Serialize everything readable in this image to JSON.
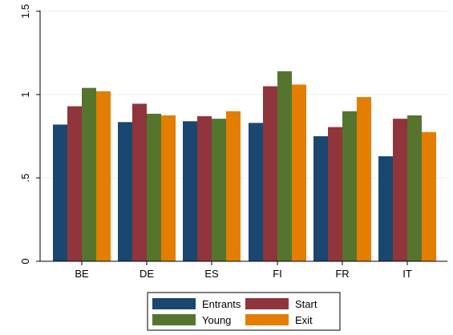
{
  "chart_data": {
    "type": "bar",
    "title": "",
    "xlabel": "",
    "ylabel": "",
    "categories": [
      "BE",
      "DE",
      "ES",
      "FI",
      "FR",
      "IT"
    ],
    "series": [
      {
        "name": "Entrants",
        "color": "#1a476f",
        "values": [
          0.82,
          0.835,
          0.84,
          0.83,
          0.75,
          0.63
        ]
      },
      {
        "name": "Start",
        "color": "#90353b",
        "values": [
          0.93,
          0.945,
          0.87,
          1.05,
          0.805,
          0.855
        ]
      },
      {
        "name": "Young",
        "color": "#55752f",
        "values": [
          1.04,
          0.885,
          0.855,
          1.14,
          0.9,
          0.875
        ]
      },
      {
        "name": "Exit",
        "color": "#e37e00",
        "values": [
          1.02,
          0.875,
          0.9,
          1.06,
          0.985,
          0.775
        ]
      }
    ],
    "ylim": [
      0,
      1.5
    ],
    "yticks": [
      0,
      0.5,
      1,
      1.5
    ],
    "ytick_labels": [
      "0",
      ".5",
      "1",
      "1.5"
    ],
    "grid": "horizontal",
    "legend_position": "bottom",
    "legend_columns": 2
  }
}
